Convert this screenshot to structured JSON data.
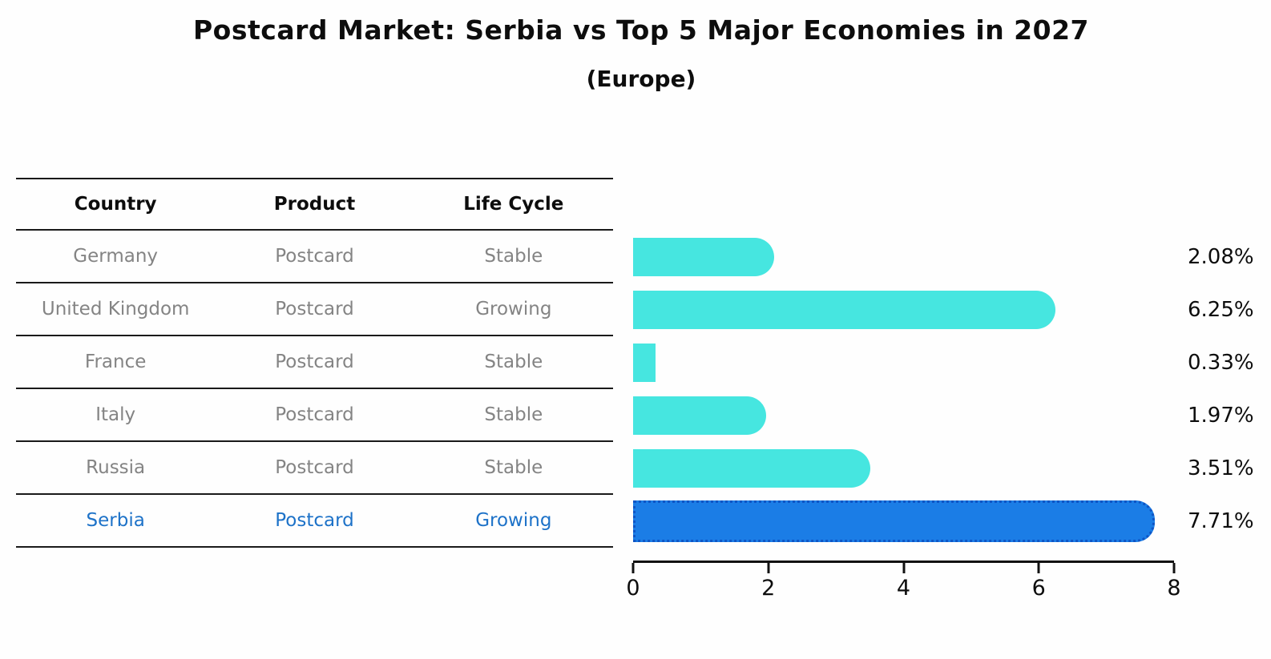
{
  "title": "Postcard Market: Serbia vs Top 5 Major Economies in 2027",
  "subtitle": "(Europe)",
  "table": {
    "headers": [
      "Country",
      "Product",
      "Life Cycle"
    ],
    "rows": [
      {
        "country": "Germany",
        "product": "Postcard",
        "life_cycle": "Stable",
        "highlight": false
      },
      {
        "country": "United Kingdom",
        "product": "Postcard",
        "life_cycle": "Growing",
        "highlight": false
      },
      {
        "country": "France",
        "product": "Postcard",
        "life_cycle": "Stable",
        "highlight": false
      },
      {
        "country": "Italy",
        "product": "Postcard",
        "life_cycle": "Stable",
        "highlight": false
      },
      {
        "country": "Russia",
        "product": "Postcard",
        "life_cycle": "Stable",
        "highlight": false
      },
      {
        "country": "Serbia",
        "product": "Postcard",
        "life_cycle": "Growing",
        "highlight": true
      }
    ]
  },
  "chart_data": {
    "type": "bar",
    "orientation": "horizontal",
    "title": "Postcard Market: Serbia vs Top 5 Major Economies in 2027",
    "subtitle": "(Europe)",
    "categories": [
      "Germany",
      "United Kingdom",
      "France",
      "Italy",
      "Russia",
      "Serbia"
    ],
    "values": [
      2.08,
      6.25,
      0.33,
      1.97,
      3.51,
      7.71
    ],
    "value_labels": [
      "2.08%",
      "6.25%",
      "0.33%",
      "1.97%",
      "3.51%",
      "7.71%"
    ],
    "unit": "%",
    "highlight_category": "Serbia",
    "xlim": [
      0,
      8
    ],
    "x_ticks": [
      0,
      2,
      4,
      6,
      8
    ],
    "grid": false,
    "legend": false,
    "colors": {
      "bar_default": "#46e6e0",
      "bar_highlight": "#1b7de6",
      "bar_highlight_border": "#0e55c5",
      "highlight_text": "#1d72c8",
      "row_text": "#848484",
      "axis": "#111111"
    }
  }
}
